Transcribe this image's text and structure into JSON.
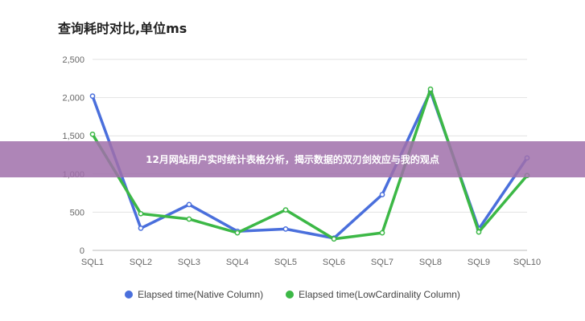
{
  "chart_data": {
    "type": "line",
    "title": "查询耗时对比,单位ms",
    "categories": [
      "SQL1",
      "SQL2",
      "SQL3",
      "SQL4",
      "SQL5",
      "SQL6",
      "SQL7",
      "SQL8",
      "SQL9",
      "SQL10"
    ],
    "ylim": [
      0,
      2500
    ],
    "yticks": [
      0,
      500,
      1000,
      1500,
      2000,
      2500
    ],
    "ytick_labels": [
      "0",
      "500",
      "1,000",
      "1,500",
      "2,000",
      "2,500"
    ],
    "grid": true,
    "legend_position": "bottom",
    "series": [
      {
        "name": "Elapsed time(Native Column)",
        "color": "#4a6fdc",
        "values": [
          2020,
          290,
          600,
          250,
          280,
          160,
          730,
          2080,
          280,
          1210
        ]
      },
      {
        "name": "Elapsed time(LowCardinality Column)",
        "color": "#3cb846",
        "values": [
          1520,
          480,
          410,
          230,
          530,
          150,
          230,
          2110,
          240,
          980
        ]
      }
    ]
  },
  "banner": {
    "text": "12月网站用户实时统计表格分析，揭示数据的双刃剑效应与我的观点"
  }
}
